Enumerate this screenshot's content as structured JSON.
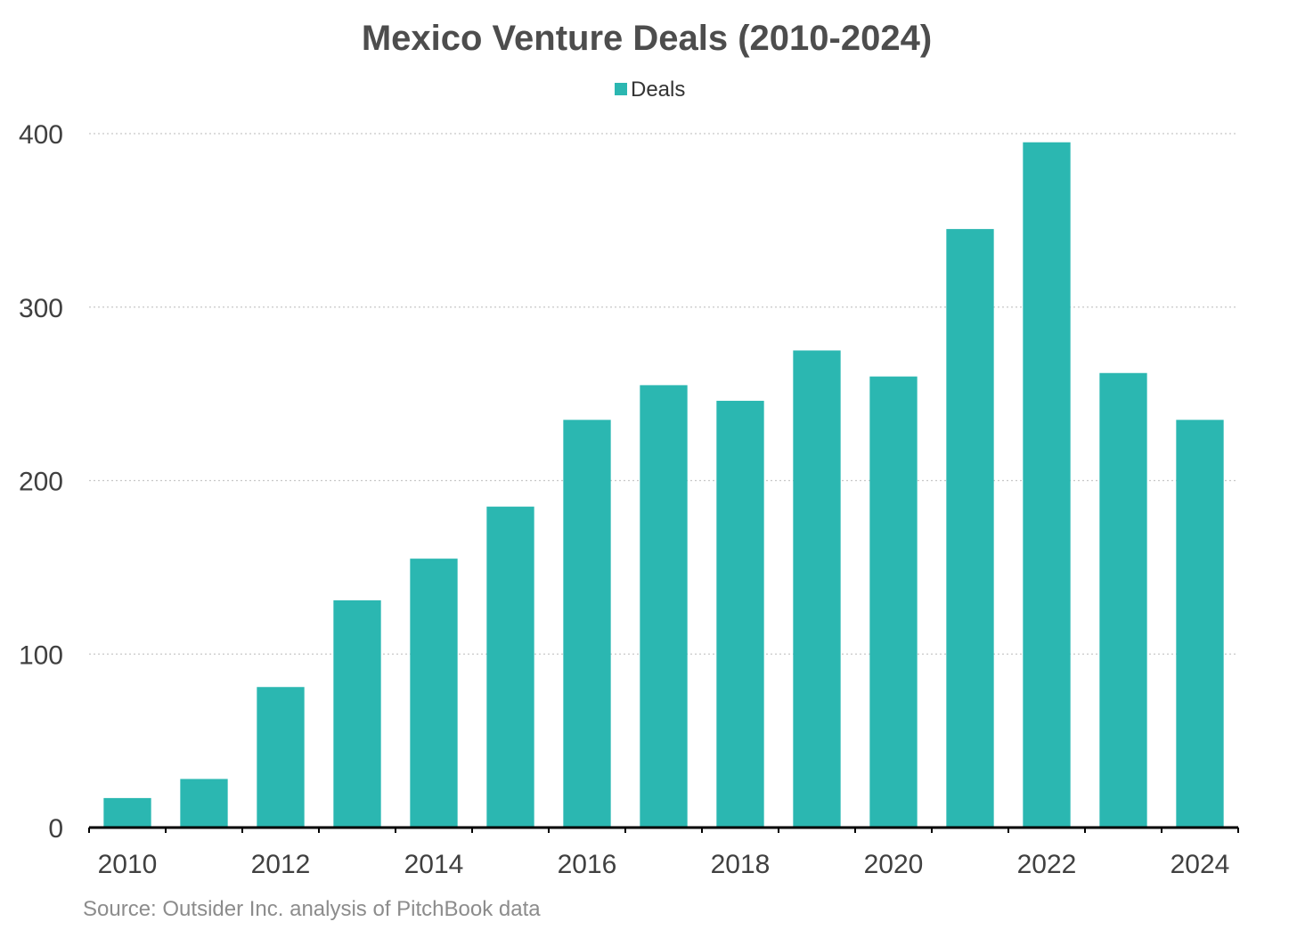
{
  "chart_data": {
    "type": "bar",
    "title": "Mexico Venture Deals (2010-2024)",
    "xlabel": "",
    "ylabel": "",
    "categories": [
      "2010",
      "2011",
      "2012",
      "2013",
      "2014",
      "2015",
      "2016",
      "2017",
      "2018",
      "2019",
      "2020",
      "2021",
      "2022",
      "2023",
      "2024"
    ],
    "series": [
      {
        "name": "Deals",
        "values": [
          17,
          28,
          81,
          131,
          155,
          185,
          235,
          255,
          246,
          275,
          260,
          345,
          395,
          262,
          235
        ]
      }
    ],
    "x_tick_labels": [
      "2010",
      "2012",
      "2014",
      "2016",
      "2018",
      "2020",
      "2022",
      "2024"
    ],
    "y_ticks": [
      0,
      100,
      200,
      300,
      400
    ],
    "ylim": [
      0,
      400
    ],
    "grid": true,
    "legend": "top-center",
    "source": "Source: Outsider Inc. analysis of PitchBook data",
    "colors": {
      "bar": "#2bb7b1",
      "grid": "#c8c8c8",
      "axis": "#000000"
    }
  }
}
